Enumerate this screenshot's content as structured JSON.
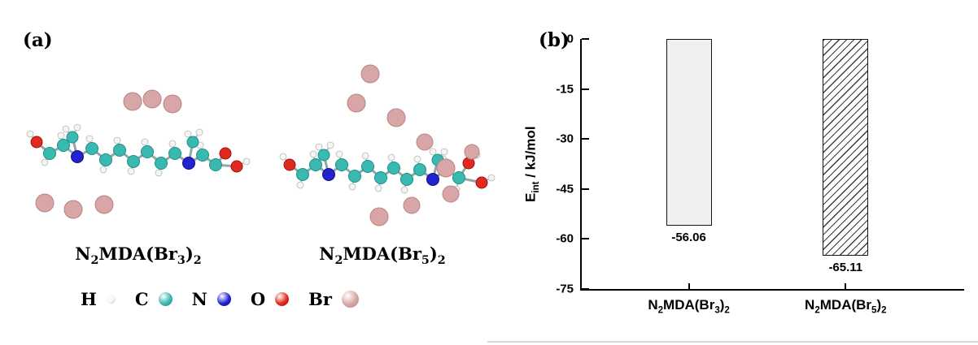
{
  "panels": {
    "a_label": "(a)",
    "b_label": "(b)"
  },
  "molecules": [
    {
      "name": "N2MDA(Br3)2",
      "label_segments": [
        {
          "t": "N"
        },
        {
          "t": "2",
          "sub": true
        },
        {
          "t": "MDA(Br"
        },
        {
          "t": "3",
          "sub": true
        },
        {
          "t": ")"
        },
        {
          "t": "2",
          "sub": true
        }
      ]
    },
    {
      "name": "N2MDA(Br5)2",
      "label_segments": [
        {
          "t": "N"
        },
        {
          "t": "2",
          "sub": true
        },
        {
          "t": "MDA(Br"
        },
        {
          "t": "5",
          "sub": true
        },
        {
          "t": ")"
        },
        {
          "t": "2",
          "sub": true
        }
      ]
    }
  ],
  "legend": {
    "items": [
      {
        "label": "H",
        "color": "#f4f4f4",
        "edge": "#b9b9b9",
        "size": 11
      },
      {
        "label": "C",
        "color": "#39b9b0",
        "edge": "#1f8f88",
        "size": 17
      },
      {
        "label": "N",
        "color": "#2222cf",
        "edge": "#12127e",
        "size": 17
      },
      {
        "label": "O",
        "color": "#e02a1e",
        "edge": "#9a1410",
        "size": 17
      },
      {
        "label": "Br",
        "color": "#d8a6a6",
        "edge": "#ba8383",
        "size": 21
      }
    ]
  },
  "chart_data": {
    "type": "bar",
    "categories": [
      "N2MDA(Br3)2",
      "N2MDA(Br5)2"
    ],
    "categories_rich": [
      [
        {
          "t": "N"
        },
        {
          "t": "2",
          "sub": true
        },
        {
          "t": "MDA(Br"
        },
        {
          "t": "3",
          "sub": true
        },
        {
          "t": ")"
        },
        {
          "t": "2",
          "sub": true
        }
      ],
      [
        {
          "t": "N"
        },
        {
          "t": "2",
          "sub": true
        },
        {
          "t": "MDA(Br"
        },
        {
          "t": "5",
          "sub": true
        },
        {
          "t": ")"
        },
        {
          "t": "2",
          "sub": true
        }
      ]
    ],
    "values": [
      -56.06,
      -65.11
    ],
    "value_labels": [
      "-56.06",
      "-65.11"
    ],
    "title": "",
    "xlabel": "",
    "ylabel": "Eint / kJ/mol",
    "ylabel_rich": [
      {
        "t": "E"
      },
      {
        "t": "int",
        "sub": true
      },
      {
        "t": " / kJ/mol"
      }
    ],
    "ylim": [
      -75,
      0
    ],
    "yticks": [
      0,
      -15,
      -30,
      -45,
      -60,
      -75
    ],
    "bar_styles": [
      "solid-light-gray",
      "diagonal-hatch"
    ],
    "grid": false,
    "legend_position": "none"
  }
}
